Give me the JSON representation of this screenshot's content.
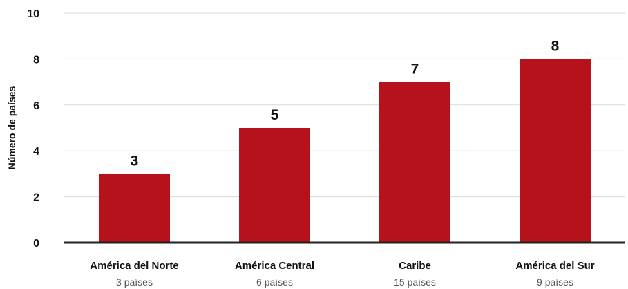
{
  "chart_data": {
    "type": "bar",
    "categories": [
      "América del Norte",
      "América Central",
      "Caribe",
      "América del Sur"
    ],
    "category_sublabels": [
      "3 países",
      "6 países",
      "15 países",
      "9 países"
    ],
    "values": [
      3,
      5,
      7,
      8
    ],
    "ylabel": "Número de países",
    "xlabel": "",
    "ylim": [
      0,
      10
    ],
    "yticks": [
      0,
      2,
      4,
      6,
      8,
      10
    ],
    "grid": true,
    "legend": "none",
    "bar_color": "#B5121B",
    "gridline_color": "#D9D9D9",
    "baseline_color": "#222222"
  }
}
